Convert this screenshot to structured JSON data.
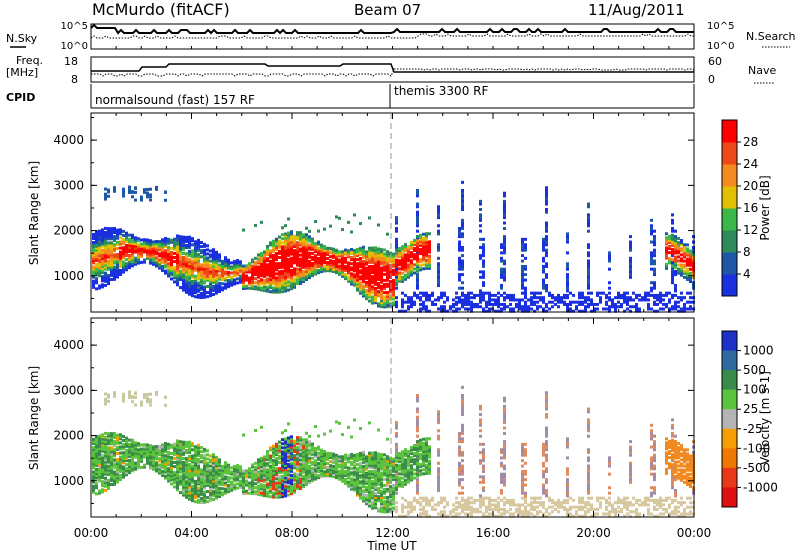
{
  "header": {
    "title": "McMurdo (fitACF)",
    "beam": "Beam 07",
    "date": "11/Aug/2011"
  },
  "top_panels": {
    "nsky_label": "N.Sky",
    "nsearch_label": "N.Search",
    "noise_ticks_left": [
      "10^5",
      "10^0"
    ],
    "noise_ticks_right": [
      "10^5",
      "10^0"
    ],
    "freq_label": "Freq.",
    "freq_unit": "[MHz]",
    "freq_ticks": [
      "18",
      "8"
    ],
    "nave_label": "Nave",
    "nave_ticks": [
      "60",
      "0"
    ],
    "cpid_label": "CPID",
    "cpid_segments": [
      {
        "label": "normalsound (fast) 157 RF",
        "start_hour": 0
      },
      {
        "label": "themis 3300 RF",
        "start_hour": 12
      }
    ]
  },
  "chart_data": [
    {
      "type": "heatmap",
      "name": "power",
      "ylabel": "Slant Range [km]",
      "yticks": [
        "1000",
        "2000",
        "3000",
        "4000"
      ],
      "ylim": [
        200,
        4600
      ],
      "xlim": [
        0,
        24
      ],
      "colorbar_label": "Power [dB]",
      "colorbar_ticks": [
        "4",
        "8",
        "12",
        "16",
        "20",
        "24",
        "28"
      ],
      "colorbar_range": [
        0,
        32
      ],
      "colorbar_colors": [
        "#1a2fe0",
        "#1e56a8",
        "#2e8a5a",
        "#3cb84a",
        "#a8cc30",
        "#f2b800",
        "#f58a1e",
        "#ee4818",
        "#d8201a",
        "#ff0000"
      ]
    },
    {
      "type": "heatmap",
      "name": "velocity",
      "ylabel": "Slant Range [km]",
      "yticks": [
        "1000",
        "2000",
        "3000",
        "4000"
      ],
      "ylim": [
        200,
        4600
      ],
      "xlim": [
        0,
        24
      ],
      "colorbar_label": "Velocity [m s-1]",
      "colorbar_ticks": [
        "1000",
        "500",
        "100",
        "25",
        "-25",
        "-100",
        "-500",
        "-1000"
      ],
      "colorbar_colors": [
        "#1e30c8",
        "#2c6aa0",
        "#3a8c4a",
        "#5cc43c",
        "#b4b4b4",
        "#f5a000",
        "#f07800",
        "#e83818",
        "#e01010"
      ]
    }
  ],
  "x_axis": {
    "label": "Time UT",
    "ticks": [
      "00:00",
      "04:00",
      "08:00",
      "12:00",
      "16:00",
      "20:00",
      "00:00"
    ]
  }
}
